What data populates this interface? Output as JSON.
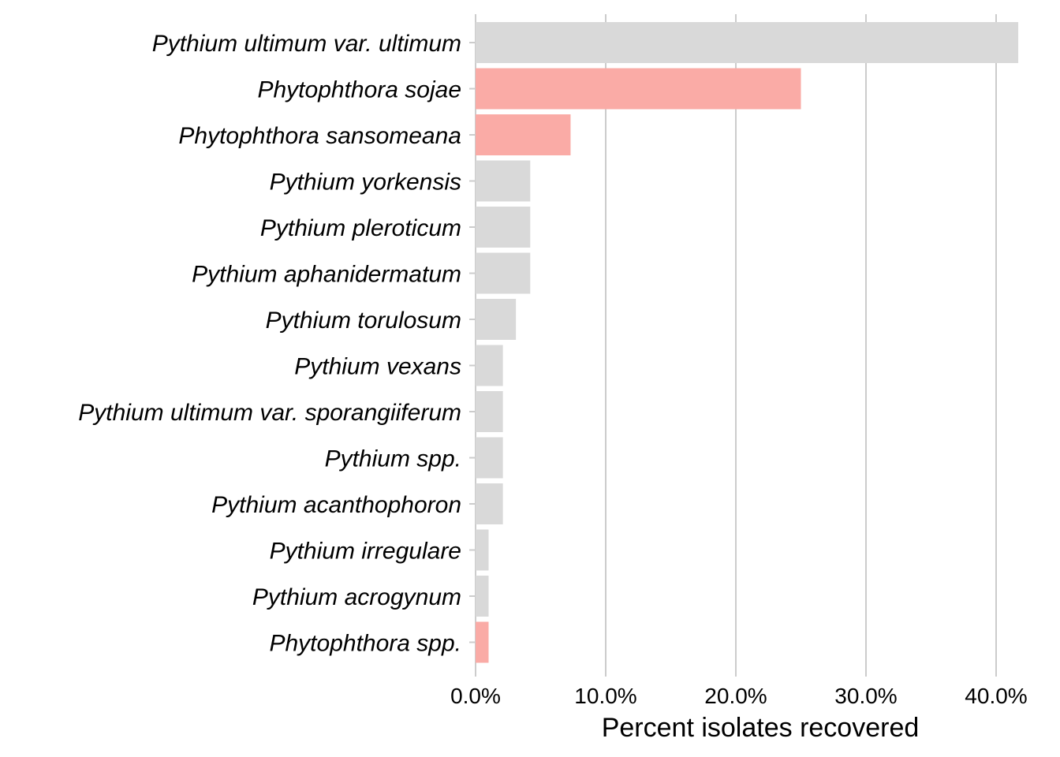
{
  "chart_data": {
    "type": "bar",
    "orientation": "horizontal",
    "xlabel": "Percent isolates recovered",
    "ylabel": "",
    "xlim": [
      0,
      42
    ],
    "x_ticks": [
      0,
      10,
      20,
      30,
      40
    ],
    "x_tick_labels": [
      "0.0%",
      "10.0%",
      "20.0%",
      "30.0%",
      "40.0%"
    ],
    "grid": "vertical major",
    "legend": "none",
    "categories": [
      "Pythium ultimum var. ultimum",
      "Phytophthora sojae",
      "Phytophthora sansomeana",
      "Pythium yorkensis",
      "Pythium pleroticum",
      "Pythium aphanidermatum",
      "Pythium torulosum",
      "Pythium vexans",
      "Pythium ultimum var. sporangiiferum",
      "Pythium spp.",
      "Pythium acanthophoron",
      "Pythium irregulare",
      "Pythium acrogynum",
      "Phytophthora spp."
    ],
    "values": [
      41.7,
      25.0,
      7.3,
      4.2,
      4.2,
      4.2,
      3.1,
      2.1,
      2.1,
      2.1,
      2.1,
      1.0,
      1.0,
      1.0
    ],
    "genus": [
      "Pythium",
      "Phytophthora",
      "Phytophthora",
      "Pythium",
      "Pythium",
      "Pythium",
      "Pythium",
      "Pythium",
      "Pythium",
      "Pythium",
      "Pythium",
      "Pythium",
      "Pythium",
      "Phytophthora"
    ],
    "colors": {
      "Pythium": "#d9d9d9",
      "Phytophthora": "#faaba6"
    }
  }
}
